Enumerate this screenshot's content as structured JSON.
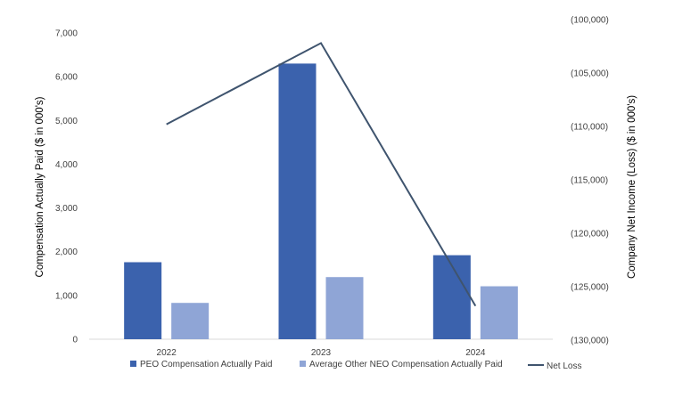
{
  "chart_data": {
    "type": "bar",
    "title": "",
    "categories": [
      "2022",
      "2023",
      "2024"
    ],
    "series": [
      {
        "name": "PEO Compensation Actually Paid",
        "type": "bar",
        "axis": "left",
        "color": "#3b62ad",
        "values": [
          1760,
          6300,
          1920
        ]
      },
      {
        "name": "Average Other NEO Compensation Actually Paid",
        "type": "bar",
        "axis": "left",
        "color": "#8fa5d6",
        "values": [
          830,
          1420,
          1210
        ]
      },
      {
        "name": "Net Loss",
        "type": "line",
        "axis": "right",
        "color": "#3f546e",
        "values": [
          -109800,
          -102200,
          -126800
        ]
      }
    ],
    "ylabel": "Compensation Actually Paid ($ in 000's)",
    "ylim": [
      0,
      7000
    ],
    "yticks": [
      "7,000",
      "6,000",
      "5,000",
      "4,000",
      "3,000",
      "2,000",
      "1,000",
      "0"
    ],
    "y2label": "Company Net Income (Loss) ($ in 000's)",
    "y2lim": [
      -130000,
      -100000
    ],
    "y2ticks": [
      "(100,000)",
      "(105,000)",
      "(110,000)",
      "(115,000)",
      "(120,000)",
      "(125,000)",
      "(130,000)"
    ],
    "grid": false,
    "legend": "bottom"
  }
}
